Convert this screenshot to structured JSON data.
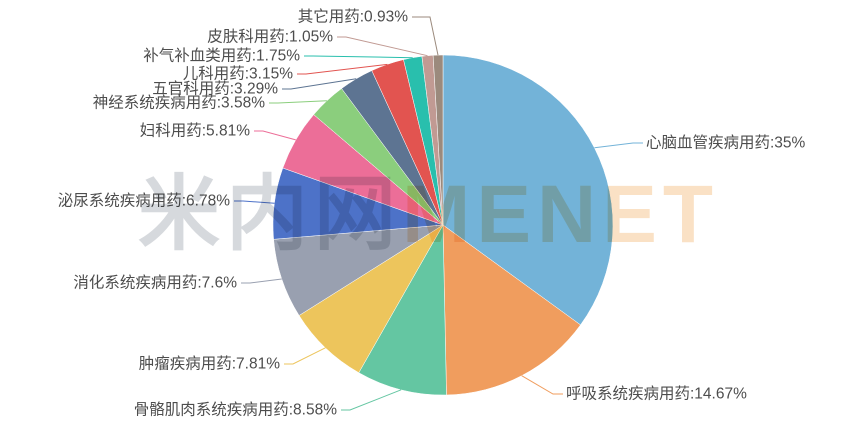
{
  "chart_data": {
    "type": "pie",
    "title": "",
    "legend_position": "none",
    "grid": false,
    "total": 100,
    "label_format": "{name}:{value}%",
    "start_angle_deg": 0,
    "direction": "clockwise",
    "items": [
      {
        "label": "心脑血管疾病用药",
        "value": 35,
        "color": "#73b3d8"
      },
      {
        "label": "呼吸系统疾病用药",
        "value": 14.67,
        "color": "#f09d5e"
      },
      {
        "label": "骨骼肌肉系统疾病用药",
        "value": 8.58,
        "color": "#64c6a2"
      },
      {
        "label": "肿瘤疾病用药",
        "value": 7.81,
        "color": "#edc55c"
      },
      {
        "label": "消化系统疾病用药",
        "value": 7.6,
        "color": "#99a0b0"
      },
      {
        "label": "泌尿系统疾病用药",
        "value": 6.78,
        "color": "#4d72c8"
      },
      {
        "label": "妇科用药",
        "value": 5.81,
        "color": "#ec6e98"
      },
      {
        "label": "神经系统疾病用药",
        "value": 3.58,
        "color": "#8bce7d"
      },
      {
        "label": "五官科用药",
        "value": 3.29,
        "color": "#5d7492"
      },
      {
        "label": "儿科用药",
        "value": 3.15,
        "color": "#e25450"
      },
      {
        "label": "补气补血类用药",
        "value": 1.75,
        "color": "#29bfad"
      },
      {
        "label": "皮肤科用药",
        "value": 1.05,
        "color": "#c19a93"
      },
      {
        "label": "其它用药",
        "value": 0.93,
        "color": "#9b8a7d"
      }
    ]
  },
  "watermark": {
    "cn": "米内网",
    "en": "MENET"
  },
  "style": {
    "label_text_color": "#4d4d4d",
    "background": "#ffffff"
  }
}
